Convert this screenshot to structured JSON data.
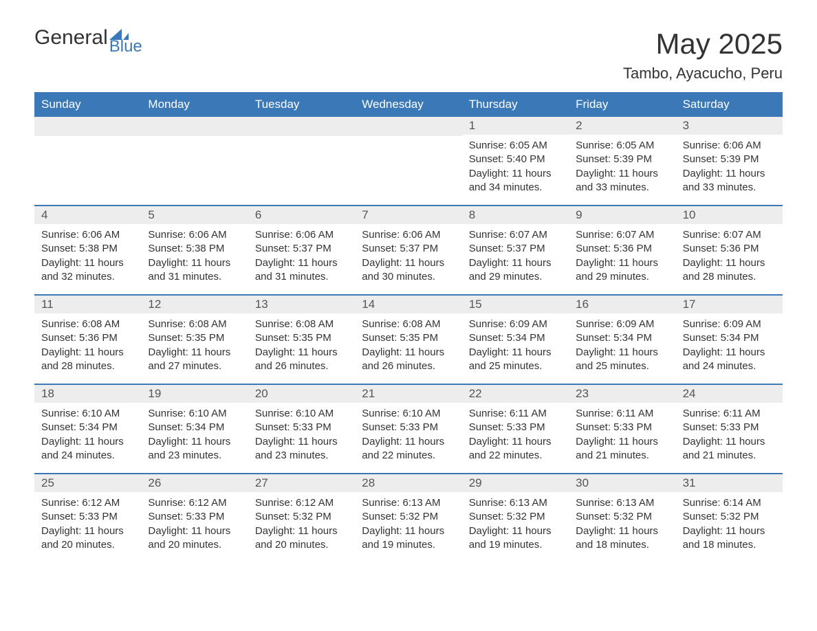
{
  "brand": {
    "name_left": "General",
    "name_right": "Blue",
    "icon_color": "#3b78b8"
  },
  "title": "May 2025",
  "subtitle": "Tambo, Ayacucho, Peru",
  "colors": {
    "header_bg": "#3b78b8",
    "header_text": "#ffffff",
    "daynum_bg": "#ededed",
    "text": "#333333",
    "week_border": "#3b78b8",
    "page_bg": "#ffffff"
  },
  "typography": {
    "title_fontsize": 42,
    "subtitle_fontsize": 22,
    "header_fontsize": 17,
    "body_fontsize": 15
  },
  "weekdays": [
    "Sunday",
    "Monday",
    "Tuesday",
    "Wednesday",
    "Thursday",
    "Friday",
    "Saturday"
  ],
  "weeks": [
    [
      {
        "blank": true
      },
      {
        "blank": true
      },
      {
        "blank": true
      },
      {
        "blank": true
      },
      {
        "day": "1",
        "sunrise": "Sunrise: 6:05 AM",
        "sunset": "Sunset: 5:40 PM",
        "daylight": "Daylight: 11 hours and 34 minutes."
      },
      {
        "day": "2",
        "sunrise": "Sunrise: 6:05 AM",
        "sunset": "Sunset: 5:39 PM",
        "daylight": "Daylight: 11 hours and 33 minutes."
      },
      {
        "day": "3",
        "sunrise": "Sunrise: 6:06 AM",
        "sunset": "Sunset: 5:39 PM",
        "daylight": "Daylight: 11 hours and 33 minutes."
      }
    ],
    [
      {
        "day": "4",
        "sunrise": "Sunrise: 6:06 AM",
        "sunset": "Sunset: 5:38 PM",
        "daylight": "Daylight: 11 hours and 32 minutes."
      },
      {
        "day": "5",
        "sunrise": "Sunrise: 6:06 AM",
        "sunset": "Sunset: 5:38 PM",
        "daylight": "Daylight: 11 hours and 31 minutes."
      },
      {
        "day": "6",
        "sunrise": "Sunrise: 6:06 AM",
        "sunset": "Sunset: 5:37 PM",
        "daylight": "Daylight: 11 hours and 31 minutes."
      },
      {
        "day": "7",
        "sunrise": "Sunrise: 6:06 AM",
        "sunset": "Sunset: 5:37 PM",
        "daylight": "Daylight: 11 hours and 30 minutes."
      },
      {
        "day": "8",
        "sunrise": "Sunrise: 6:07 AM",
        "sunset": "Sunset: 5:37 PM",
        "daylight": "Daylight: 11 hours and 29 minutes."
      },
      {
        "day": "9",
        "sunrise": "Sunrise: 6:07 AM",
        "sunset": "Sunset: 5:36 PM",
        "daylight": "Daylight: 11 hours and 29 minutes."
      },
      {
        "day": "10",
        "sunrise": "Sunrise: 6:07 AM",
        "sunset": "Sunset: 5:36 PM",
        "daylight": "Daylight: 11 hours and 28 minutes."
      }
    ],
    [
      {
        "day": "11",
        "sunrise": "Sunrise: 6:08 AM",
        "sunset": "Sunset: 5:36 PM",
        "daylight": "Daylight: 11 hours and 28 minutes."
      },
      {
        "day": "12",
        "sunrise": "Sunrise: 6:08 AM",
        "sunset": "Sunset: 5:35 PM",
        "daylight": "Daylight: 11 hours and 27 minutes."
      },
      {
        "day": "13",
        "sunrise": "Sunrise: 6:08 AM",
        "sunset": "Sunset: 5:35 PM",
        "daylight": "Daylight: 11 hours and 26 minutes."
      },
      {
        "day": "14",
        "sunrise": "Sunrise: 6:08 AM",
        "sunset": "Sunset: 5:35 PM",
        "daylight": "Daylight: 11 hours and 26 minutes."
      },
      {
        "day": "15",
        "sunrise": "Sunrise: 6:09 AM",
        "sunset": "Sunset: 5:34 PM",
        "daylight": "Daylight: 11 hours and 25 minutes."
      },
      {
        "day": "16",
        "sunrise": "Sunrise: 6:09 AM",
        "sunset": "Sunset: 5:34 PM",
        "daylight": "Daylight: 11 hours and 25 minutes."
      },
      {
        "day": "17",
        "sunrise": "Sunrise: 6:09 AM",
        "sunset": "Sunset: 5:34 PM",
        "daylight": "Daylight: 11 hours and 24 minutes."
      }
    ],
    [
      {
        "day": "18",
        "sunrise": "Sunrise: 6:10 AM",
        "sunset": "Sunset: 5:34 PM",
        "daylight": "Daylight: 11 hours and 24 minutes."
      },
      {
        "day": "19",
        "sunrise": "Sunrise: 6:10 AM",
        "sunset": "Sunset: 5:34 PM",
        "daylight": "Daylight: 11 hours and 23 minutes."
      },
      {
        "day": "20",
        "sunrise": "Sunrise: 6:10 AM",
        "sunset": "Sunset: 5:33 PM",
        "daylight": "Daylight: 11 hours and 23 minutes."
      },
      {
        "day": "21",
        "sunrise": "Sunrise: 6:10 AM",
        "sunset": "Sunset: 5:33 PM",
        "daylight": "Daylight: 11 hours and 22 minutes."
      },
      {
        "day": "22",
        "sunrise": "Sunrise: 6:11 AM",
        "sunset": "Sunset: 5:33 PM",
        "daylight": "Daylight: 11 hours and 22 minutes."
      },
      {
        "day": "23",
        "sunrise": "Sunrise: 6:11 AM",
        "sunset": "Sunset: 5:33 PM",
        "daylight": "Daylight: 11 hours and 21 minutes."
      },
      {
        "day": "24",
        "sunrise": "Sunrise: 6:11 AM",
        "sunset": "Sunset: 5:33 PM",
        "daylight": "Daylight: 11 hours and 21 minutes."
      }
    ],
    [
      {
        "day": "25",
        "sunrise": "Sunrise: 6:12 AM",
        "sunset": "Sunset: 5:33 PM",
        "daylight": "Daylight: 11 hours and 20 minutes."
      },
      {
        "day": "26",
        "sunrise": "Sunrise: 6:12 AM",
        "sunset": "Sunset: 5:33 PM",
        "daylight": "Daylight: 11 hours and 20 minutes."
      },
      {
        "day": "27",
        "sunrise": "Sunrise: 6:12 AM",
        "sunset": "Sunset: 5:32 PM",
        "daylight": "Daylight: 11 hours and 20 minutes."
      },
      {
        "day": "28",
        "sunrise": "Sunrise: 6:13 AM",
        "sunset": "Sunset: 5:32 PM",
        "daylight": "Daylight: 11 hours and 19 minutes."
      },
      {
        "day": "29",
        "sunrise": "Sunrise: 6:13 AM",
        "sunset": "Sunset: 5:32 PM",
        "daylight": "Daylight: 11 hours and 19 minutes."
      },
      {
        "day": "30",
        "sunrise": "Sunrise: 6:13 AM",
        "sunset": "Sunset: 5:32 PM",
        "daylight": "Daylight: 11 hours and 18 minutes."
      },
      {
        "day": "31",
        "sunrise": "Sunrise: 6:14 AM",
        "sunset": "Sunset: 5:32 PM",
        "daylight": "Daylight: 11 hours and 18 minutes."
      }
    ]
  ]
}
